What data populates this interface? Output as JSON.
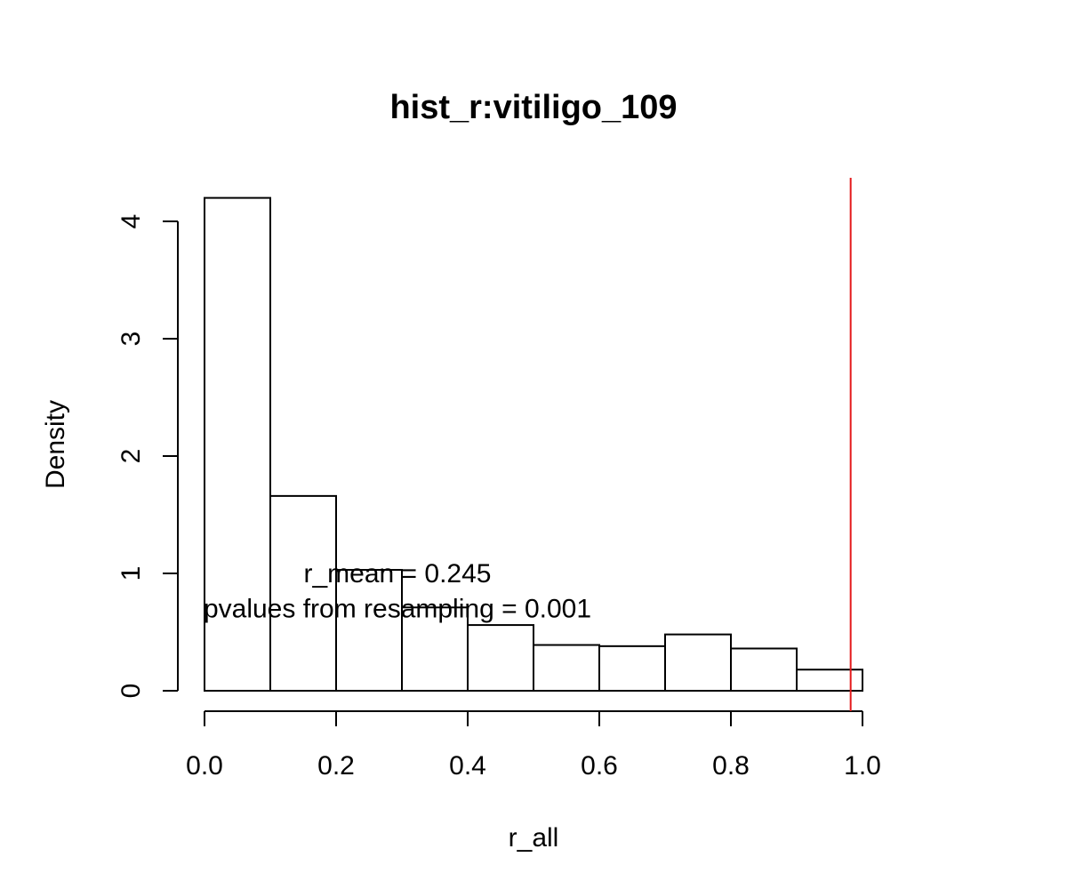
{
  "chart_data": {
    "type": "bar",
    "title": "hist_r:vitiligo_109",
    "xlabel": "r_all",
    "ylabel": "Density",
    "xlim": [
      0.0,
      1.0
    ],
    "ylim": [
      0,
      4.2
    ],
    "grid": false,
    "bins": [
      {
        "x0": 0.0,
        "x1": 0.1,
        "density": 4.2
      },
      {
        "x0": 0.1,
        "x1": 0.2,
        "density": 1.66
      },
      {
        "x0": 0.2,
        "x1": 0.3,
        "density": 1.03
      },
      {
        "x0": 0.3,
        "x1": 0.4,
        "density": 0.71
      },
      {
        "x0": 0.4,
        "x1": 0.5,
        "density": 0.56
      },
      {
        "x0": 0.5,
        "x1": 0.6,
        "density": 0.39
      },
      {
        "x0": 0.6,
        "x1": 0.7,
        "density": 0.38
      },
      {
        "x0": 0.7,
        "x1": 0.8,
        "density": 0.48
      },
      {
        "x0": 0.8,
        "x1": 0.9,
        "density": 0.36
      },
      {
        "x0": 0.9,
        "x1": 1.0,
        "density": 0.18
      }
    ],
    "x_ticks": [
      0.0,
      0.2,
      0.4,
      0.6,
      0.8,
      1.0
    ],
    "x_tick_labels": [
      "0.0",
      "0.2",
      "0.4",
      "0.6",
      "0.8",
      "1.0"
    ],
    "y_ticks": [
      0,
      1,
      2,
      3,
      4
    ],
    "y_tick_labels": [
      "0",
      "1",
      "2",
      "3",
      "4"
    ],
    "reference_line": {
      "x": 0.982,
      "color": "#e41a1c"
    },
    "annotations": [
      {
        "text": "r_mean = 0.245",
        "x": 0.3,
        "y": 1.0
      },
      {
        "text": "pvalues from resampling = 0.001",
        "x": 0.3,
        "y": 0.7
      }
    ]
  }
}
